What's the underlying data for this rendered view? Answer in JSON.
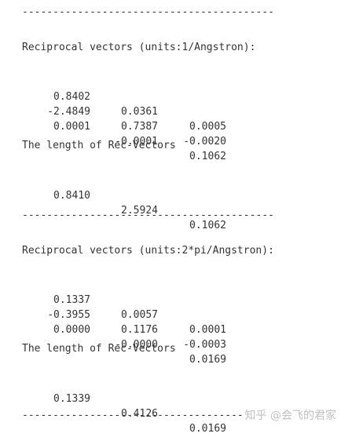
{
  "separator": "-----------------------------------------",
  "section1": {
    "heading": "Reciprocal vectors (units:1/Angstron):",
    "rows": [
      [
        "0.8402",
        "0.0361",
        "0.0005"
      ],
      [
        "-2.4849",
        "0.7387",
        "-0.0020"
      ],
      [
        "0.0001",
        "-0.0001",
        "0.1062"
      ]
    ],
    "length_heading": "The length of Rec-Vectors",
    "lengths": [
      "0.8410",
      "2.5924",
      "0.1062"
    ]
  },
  "section2": {
    "heading": "Reciprocal vectors (units:2*pi/Angstron):",
    "rows": [
      [
        "0.1337",
        "0.0057",
        "0.0001"
      ],
      [
        "-0.3955",
        "0.1176",
        "-0.0003"
      ],
      [
        "0.0000",
        "-0.0000",
        "0.0169"
      ]
    ],
    "length_heading": "The length of Rec-Vectors",
    "lengths": [
      "0.1339",
      "0.4126",
      "0.0169"
    ]
  },
  "watermark": "知乎 @会飞的君家"
}
